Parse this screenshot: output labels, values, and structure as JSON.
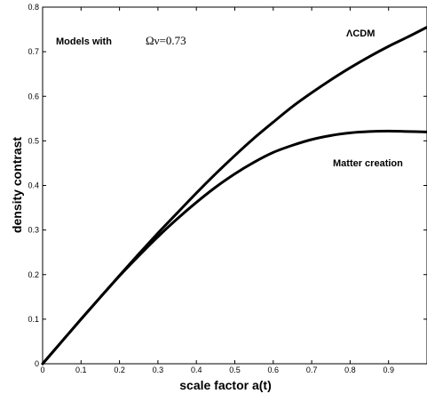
{
  "chart_data": {
    "type": "line",
    "xlabel": "scale factor a(t)",
    "ylabel": "density contrast",
    "xlim": [
      0,
      1
    ],
    "ylim": [
      0,
      0.8
    ],
    "x_ticks": [
      "0",
      "0.1",
      "0.2",
      "0.3",
      "0.4",
      "0.5",
      "0.6",
      "0.7",
      "0.8",
      "0.9"
    ],
    "y_ticks": [
      "0",
      "0.1",
      "0.2",
      "0.3",
      "0.4",
      "0.5",
      "0.6",
      "0.7",
      "0.8"
    ],
    "grid": false,
    "annotation_prefix": "Models with",
    "annotation_param": "Ων=0.73",
    "series": [
      {
        "name": "ΛCDM",
        "x": [
          0,
          0.05,
          0.1,
          0.15,
          0.2,
          0.25,
          0.3,
          0.35,
          0.4,
          0.45,
          0.5,
          0.55,
          0.6,
          0.65,
          0.7,
          0.75,
          0.8,
          0.85,
          0.9,
          0.95,
          1.0
        ],
        "y": [
          0,
          0.05,
          0.1,
          0.149,
          0.198,
          0.246,
          0.293,
          0.338,
          0.383,
          0.426,
          0.467,
          0.506,
          0.542,
          0.577,
          0.608,
          0.637,
          0.664,
          0.689,
          0.712,
          0.733,
          0.755
        ]
      },
      {
        "name": "Matter creation",
        "x": [
          0,
          0.05,
          0.1,
          0.15,
          0.2,
          0.25,
          0.3,
          0.35,
          0.4,
          0.45,
          0.5,
          0.55,
          0.6,
          0.65,
          0.7,
          0.75,
          0.8,
          0.85,
          0.9,
          0.95,
          1.0
        ],
        "y": [
          0,
          0.05,
          0.1,
          0.149,
          0.197,
          0.242,
          0.285,
          0.325,
          0.362,
          0.396,
          0.426,
          0.452,
          0.474,
          0.49,
          0.503,
          0.512,
          0.518,
          0.521,
          0.522,
          0.521,
          0.52
        ]
      }
    ]
  }
}
